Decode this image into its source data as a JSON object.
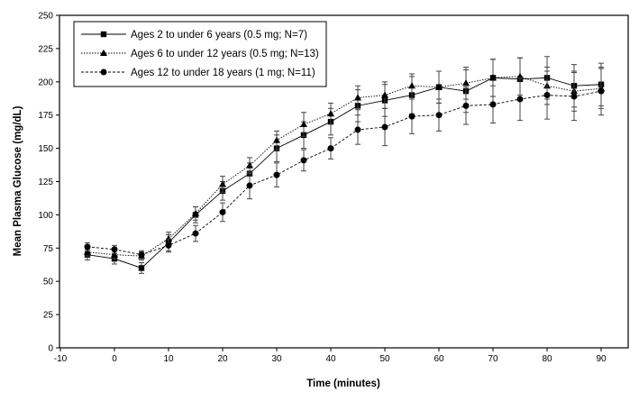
{
  "chart_data": {
    "type": "line",
    "title": "",
    "xlabel": "Time (minutes)",
    "ylabel": "Mean Plasma Glucose (mg/dL)",
    "xlim": [
      -10,
      95
    ],
    "ylim": [
      0,
      250
    ],
    "xticks": [
      -10,
      0,
      10,
      20,
      30,
      40,
      50,
      60,
      70,
      80,
      90
    ],
    "yticks": [
      0,
      25,
      50,
      75,
      100,
      125,
      150,
      175,
      200,
      225,
      250
    ],
    "grid": false,
    "legend_placement": "top-left",
    "x": [
      -5,
      0,
      5,
      10,
      15,
      20,
      25,
      30,
      35,
      40,
      45,
      50,
      55,
      60,
      65,
      70,
      75,
      80,
      85,
      90
    ],
    "series": [
      {
        "name": "Ages 2 to under 6 years (0.5 mg; N=7)",
        "marker": "square",
        "dash": "solid",
        "values": [
          70,
          67,
          60,
          79,
          100,
          118,
          131,
          150,
          160,
          170,
          182,
          186,
          190,
          196,
          193,
          203,
          202,
          203,
          197,
          198
        ],
        "errors": [
          4,
          4,
          4,
          6,
          6,
          7,
          8,
          10,
          10,
          10,
          12,
          12,
          14,
          12,
          16,
          14,
          16,
          16,
          16,
          16
        ]
      },
      {
        "name": "Ages 6 to under 12 years (0.5 mg; N=13)",
        "marker": "triangle",
        "dash": "dotted",
        "values": [
          72,
          70,
          69,
          82,
          101,
          123,
          137,
          156,
          168,
          176,
          188,
          190,
          197,
          196,
          199,
          203,
          204,
          197,
          193,
          195
        ],
        "errors": [
          3,
          3,
          3,
          5,
          5,
          6,
          6,
          7,
          9,
          8,
          9,
          10,
          9,
          12,
          12,
          14,
          14,
          14,
          15,
          15
        ]
      },
      {
        "name": "Ages 12 to under 18 years (1 mg; N=11)",
        "marker": "circle",
        "dash": "dashed",
        "values": [
          76,
          74,
          70,
          77,
          86,
          102,
          122,
          130,
          141,
          150,
          164,
          166,
          174,
          175,
          182,
          183,
          187,
          190,
          189,
          193
        ],
        "errors": [
          3,
          3,
          3,
          5,
          6,
          7,
          10,
          9,
          8,
          8,
          11,
          14,
          13,
          12,
          14,
          14,
          16,
          18,
          18,
          18
        ]
      }
    ]
  }
}
